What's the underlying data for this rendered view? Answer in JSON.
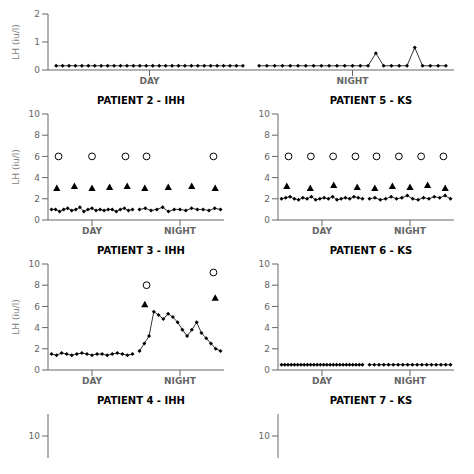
{
  "chart_data": [
    {
      "type": "line",
      "ylabel": "LH (iu/l)",
      "categories": [
        "DAY",
        "NIGHT"
      ],
      "ylim": [
        0,
        2
      ],
      "yticks": [
        0,
        1,
        2
      ],
      "series": [
        {
          "type": "line",
          "marker": "diamond",
          "line_style": "solid",
          "color": "#000000",
          "values": [
            [
              0.15,
              0.15,
              0.15,
              0.15,
              0.15,
              0.15,
              0.15,
              0.15,
              0.15,
              0.15,
              0.15,
              0.15,
              0.15,
              0.15,
              0.15,
              0.15,
              0.15,
              0.15,
              0.15,
              0.15,
              0.15,
              0.15,
              0.15,
              0.15,
              0.15,
              0.15,
              0.15,
              0.15,
              0.15,
              0.15
            ],
            [
              0.15,
              0.15,
              0.15,
              0.15,
              0.15,
              0.15,
              0.15,
              0.15,
              0.15,
              0.15,
              0.15,
              0.15,
              0.15,
              0.15,
              0.15,
              0.6,
              0.15,
              0.15,
              0.15,
              0.15,
              0.8,
              0.15,
              0.15,
              0.15,
              0.15
            ]
          ]
        }
      ]
    },
    {
      "type": "line",
      "title": "PATIENT 2 - IHH",
      "ylabel": "LH (iu/l)",
      "categories": [
        "DAY",
        "NIGHT"
      ],
      "ylim": [
        0,
        10
      ],
      "yticks": [
        0,
        2,
        4,
        6,
        8,
        10
      ],
      "series": [
        {
          "type": "line",
          "marker": "diamond",
          "line_style": "solid",
          "color": "#000000",
          "values": [
            [
              1.0,
              1.0,
              0.8,
              1.0,
              1.1,
              0.9,
              1.0,
              1.2,
              0.8,
              1.0,
              1.1,
              0.9,
              1.0,
              0.9,
              1.0,
              1.0,
              0.8,
              1.0,
              1.1,
              0.9,
              1.0
            ],
            [
              1.0,
              1.1,
              0.9,
              1.0,
              1.2,
              0.8,
              1.0,
              1.0,
              0.9,
              1.1,
              1.0,
              1.0,
              0.9,
              1.1,
              1.0
            ]
          ]
        },
        {
          "type": "scatter",
          "marker": "triangle",
          "color": "#000000",
          "values": [
            [
              3.0,
              3.2,
              3.0,
              3.1,
              3.2
            ],
            [
              3.0,
              3.1,
              3.2,
              3.0
            ]
          ]
        },
        {
          "type": "scatter",
          "marker": "open_circle",
          "color": "#000000",
          "values": [
            [
              6.0,
              6.0,
              6.0
            ],
            [
              6.0,
              6.0
            ]
          ]
        }
      ]
    },
    {
      "type": "line",
      "title": "PATIENT 5 - KS",
      "categories": [
        "DAY",
        "NIGHT"
      ],
      "ylim": [
        0,
        10
      ],
      "yticks": [
        0,
        2,
        4,
        6,
        8,
        10
      ],
      "series": [
        {
          "type": "line",
          "marker": "diamond",
          "line_style": "solid",
          "color": "#000000",
          "values": [
            [
              2.0,
              2.1,
              2.2,
              2.0,
              1.9,
              2.1,
              2.0,
              2.2,
              1.9,
              2.0,
              2.1,
              2.0,
              2.2,
              1.9,
              2.0,
              2.1,
              2.0,
              2.2,
              2.1,
              2.0
            ],
            [
              2.0,
              2.1,
              1.9,
              2.0,
              2.2,
              2.0,
              2.1,
              2.3,
              2.0,
              1.9,
              2.1,
              2.0,
              2.2,
              2.1,
              2.3,
              2.0
            ]
          ]
        },
        {
          "type": "scatter",
          "marker": "triangle",
          "color": "#000000",
          "values": [
            [
              3.2,
              3.0,
              3.3,
              3.1
            ],
            [
              3.0,
              3.2,
              3.1,
              3.3,
              3.0
            ]
          ]
        },
        {
          "type": "scatter",
          "marker": "open_circle",
          "color": "#000000",
          "values": [
            [
              6.0,
              6.0,
              6.0,
              6.0
            ],
            [
              6.0,
              6.0,
              6.0,
              6.0
            ]
          ]
        }
      ]
    },
    {
      "type": "line",
      "title": "PATIENT 3 - IHH",
      "ylabel": "LH (iu/l)",
      "categories": [
        "DAY",
        "NIGHT"
      ],
      "ylim": [
        0,
        10
      ],
      "yticks": [
        0,
        2,
        4,
        6,
        8,
        10
      ],
      "series": [
        {
          "type": "line",
          "marker": "diamond",
          "line_style": "solid",
          "color": "#000000",
          "values": [
            [
              1.5,
              1.4,
              1.6,
              1.5,
              1.4,
              1.5,
              1.6,
              1.5,
              1.4,
              1.5,
              1.5,
              1.4,
              1.5,
              1.6,
              1.5,
              1.4,
              1.5
            ],
            [
              1.8,
              2.5,
              3.2,
              5.5,
              5.2,
              4.8,
              5.3,
              5.0,
              4.5,
              3.8,
              3.2,
              3.8,
              4.5,
              3.5,
              3.0,
              2.5,
              2.0,
              1.8
            ]
          ]
        },
        {
          "type": "scatter",
          "marker": "triangle",
          "color": "#000000",
          "values": [
            [],
            [
              6.2,
              6.8
            ]
          ]
        },
        {
          "type": "scatter",
          "marker": "open_circle",
          "color": "#000000",
          "values": [
            [],
            [
              8.0,
              9.2
            ]
          ]
        }
      ]
    },
    {
      "type": "line",
      "title": "PATIENT 6 - KS",
      "categories": [
        "DAY",
        "NIGHT"
      ],
      "ylim": [
        0,
        10
      ],
      "yticks": [
        0,
        2,
        4,
        6,
        8,
        10
      ],
      "series": [
        {
          "type": "line",
          "marker": "diamond",
          "line_style": "solid",
          "color": "#000000",
          "values": [
            [
              0.5,
              0.5,
              0.5,
              0.5,
              0.5,
              0.5,
              0.5,
              0.5,
              0.5,
              0.5,
              0.5,
              0.5,
              0.5,
              0.5,
              0.5,
              0.5,
              0.5,
              0.5,
              0.5,
              0.5,
              0.5,
              0.5,
              0.5,
              0.5,
              0.5,
              0.5
            ],
            [
              0.5,
              0.5,
              0.5,
              0.5,
              0.5,
              0.5,
              0.5,
              0.5,
              0.5,
              0.5,
              0.5,
              0.5,
              0.5,
              0.5,
              0.5,
              0.5,
              0.5,
              0.5
            ]
          ]
        }
      ]
    },
    {
      "type": "line",
      "title": "PATIENT 4 - IHH",
      "ylim": [
        9,
        11
      ],
      "yticks": [
        10
      ],
      "tick_labels": "y",
      "series": []
    },
    {
      "type": "line",
      "title": "PATIENT 7 - KS",
      "ylim": [
        9,
        11
      ],
      "yticks": [
        10
      ],
      "tick_labels": "y",
      "series": []
    }
  ]
}
